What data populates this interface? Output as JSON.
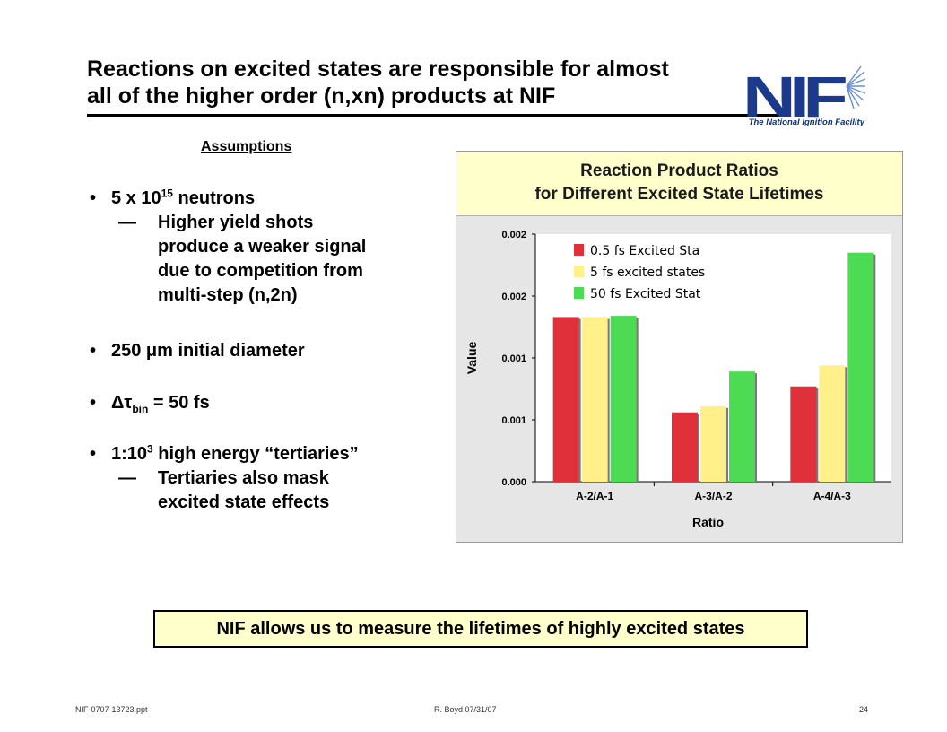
{
  "slide": {
    "title_line1": "Reactions on excited states are responsible for almost",
    "title_line2": "all of the higher order (n,xn) products at NIF",
    "logo_caption": "The National Ignition Facility",
    "logo_letters": "NIF",
    "assumptions_heading": "Assumptions",
    "bullets": {
      "b1_main": "5 x 10",
      "b1_sup": "15",
      "b1_rest": " neutrons",
      "b1_sub": [
        "Higher yield shots",
        "produce a weaker signal",
        "due to competition from",
        "multi-step (n,2n)"
      ],
      "b2": "250 μm initial diameter",
      "b3_prefix": "Δτ",
      "b3_sub": "bin",
      "b3_rest": " = 50 fs",
      "b4_main": "1:10",
      "b4_sup": "3",
      "b4_rest": " high energy “tertiaries”",
      "b4_sub": [
        "Tertiaries also mask",
        "excited state effects"
      ],
      "bullet_char": "•",
      "dash_char": "—"
    },
    "banner": "NIF allows us to measure the lifetimes of highly excited states",
    "footer_left": "NIF-0707-13723.ppt",
    "footer_center": "R. Boyd 07/31/07",
    "footer_right": "24"
  },
  "chart_data": {
    "type": "bar",
    "title": "Reaction Product Ratios",
    "subtitle": "for Different Excited State Lifetimes",
    "xlabel": "Ratio",
    "ylabel": "Value",
    "categories": [
      "A-2/A-1",
      "A-3/A-2",
      "A-4/A-3"
    ],
    "y_tick_labels": [
      "0.000",
      "0.001",
      "0.001",
      "0.002",
      "0.002"
    ],
    "ylim": [
      0,
      0.002
    ],
    "series": [
      {
        "name": "0.5 fs Excited Sta",
        "color": "#e0303a",
        "values": [
          0.00133,
          0.00056,
          0.00077
        ]
      },
      {
        "name": "5 fs excited states",
        "color": "#fff08a",
        "values": [
          0.00133,
          0.00061,
          0.00094
        ]
      },
      {
        "name": "50 fs Excited Stat",
        "color": "#4cdb52",
        "values": [
          0.00134,
          0.00089,
          0.00185
        ]
      }
    ],
    "legend_position": "top-left",
    "grid": false,
    "background_color": "#e6e6e6",
    "plot_color": "#ffffff",
    "header_color": "#ffffcc"
  }
}
